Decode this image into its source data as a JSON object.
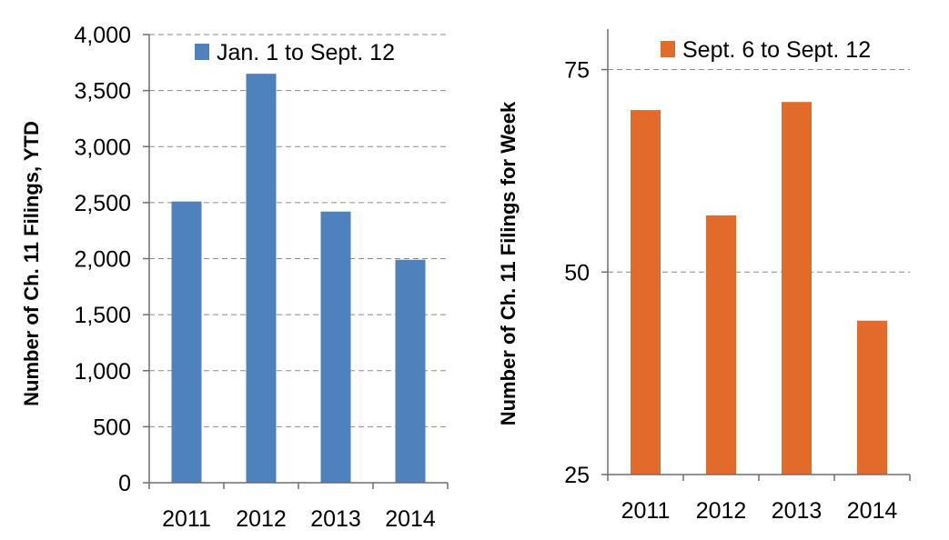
{
  "chart_data": [
    {
      "type": "bar",
      "categories": [
        "2011",
        "2012",
        "2013",
        "2014"
      ],
      "series": [
        {
          "name": "Jan. 1 to Sept. 12",
          "values": [
            2510,
            3650,
            2420,
            1990
          ],
          "color": "#4F81BD"
        }
      ],
      "ylabel": "Number of Ch. 11 Filings, YTD",
      "xlabel": "",
      "ylim": [
        0,
        4000
      ],
      "yticks": [
        0,
        500,
        1000,
        1500,
        2000,
        2500,
        3000,
        3500,
        4000
      ],
      "ytick_labels": [
        "0",
        "500",
        "1,000",
        "1,500",
        "2,000",
        "2,500",
        "3,000",
        "3,500",
        "4,000"
      ],
      "grid": true,
      "legend": "top"
    },
    {
      "type": "bar",
      "categories": [
        "2011",
        "2012",
        "2013",
        "2014"
      ],
      "series": [
        {
          "name": "Sept. 6 to Sept. 12",
          "values": [
            70,
            57,
            71,
            44
          ],
          "color": "#E26B2C"
        }
      ],
      "ylabel": "Number of Ch. 11 Filings for Week",
      "xlabel": "",
      "ylim": [
        25,
        80
      ],
      "yticks": [
        25,
        50,
        75
      ],
      "ytick_labels": [
        "25",
        "50",
        "75"
      ],
      "grid": true,
      "legend": "top"
    }
  ]
}
